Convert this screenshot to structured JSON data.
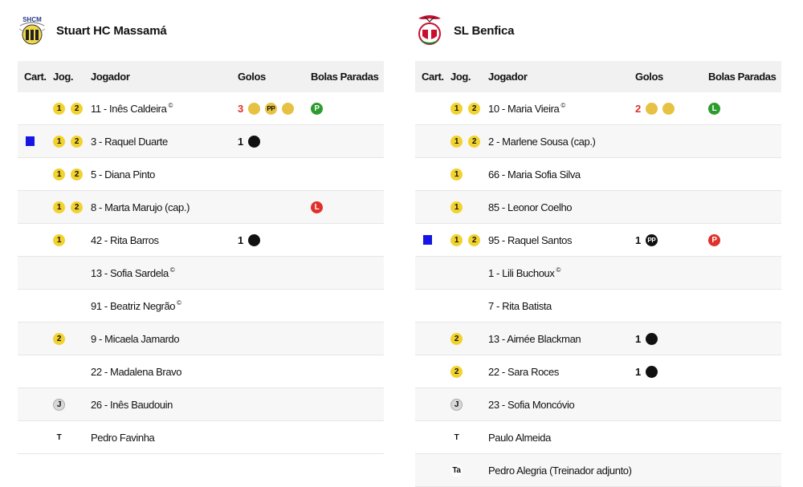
{
  "columns": {
    "cart": "Cart.",
    "jog": "Jog.",
    "player": "Jogador",
    "goals": "Golos",
    "set_pieces": "Bolas Paradas"
  },
  "home": {
    "name": "Stuart HC Massamá",
    "crest_text": "SHCM",
    "players": [
      {
        "name": "11 - Inês Caldeira",
        "sup": "©",
        "jog": [
          "1",
          "2"
        ],
        "card": null,
        "goals_count": "3",
        "goals_red": true,
        "goal_marks": [
          "ball-gold",
          "pp-gold",
          "ball-gold"
        ],
        "set": "P",
        "set_color": "green"
      },
      {
        "name": "3 - Raquel Duarte",
        "sup": "",
        "jog": [
          "1",
          "2"
        ],
        "card": "blue",
        "goals_count": "1",
        "goals_red": false,
        "goal_marks": [
          "ball-black"
        ],
        "set": "",
        "set_color": ""
      },
      {
        "name": "5 - Diana Pinto",
        "sup": "",
        "jog": [
          "1",
          "2"
        ],
        "card": null,
        "goals_count": "",
        "goals_red": false,
        "goal_marks": [],
        "set": "",
        "set_color": ""
      },
      {
        "name": "8 - Marta Marujo (cap.)",
        "sup": "",
        "jog": [
          "1",
          "2"
        ],
        "card": null,
        "goals_count": "",
        "goals_red": false,
        "goal_marks": [],
        "set": "L",
        "set_color": "red"
      },
      {
        "name": "42 - Rita Barros",
        "sup": "",
        "jog": [
          "1"
        ],
        "card": null,
        "goals_count": "1",
        "goals_red": false,
        "goal_marks": [
          "ball-black"
        ],
        "set": "",
        "set_color": ""
      },
      {
        "name": "13 - Sofia Sardela",
        "sup": "©",
        "jog": [],
        "card": null,
        "goals_count": "",
        "goals_red": false,
        "goal_marks": [],
        "set": "",
        "set_color": ""
      },
      {
        "name": "91 - Beatriz Negrão",
        "sup": "©",
        "jog": [],
        "card": null,
        "goals_count": "",
        "goals_red": false,
        "goal_marks": [],
        "set": "",
        "set_color": ""
      },
      {
        "name": "9 - Micaela Jamardo",
        "sup": "",
        "jog": [
          "2"
        ],
        "card": null,
        "goals_count": "",
        "goals_red": false,
        "goal_marks": [],
        "set": "",
        "set_color": ""
      },
      {
        "name": "22 - Madalena Bravo",
        "sup": "",
        "jog": [],
        "card": null,
        "goals_count": "",
        "goals_red": false,
        "goal_marks": [],
        "set": "",
        "set_color": ""
      },
      {
        "name": "26 - Inês Baudouin",
        "sup": "",
        "jog": [
          "J"
        ],
        "card": null,
        "goals_count": "",
        "goals_red": false,
        "goal_marks": [],
        "set": "",
        "set_color": ""
      },
      {
        "name": "Pedro Favinha",
        "sup": "",
        "jog": [
          "T"
        ],
        "card": null,
        "goals_count": "",
        "goals_red": false,
        "goal_marks": [],
        "set": "",
        "set_color": ""
      }
    ]
  },
  "away": {
    "name": "SL Benfica",
    "players": [
      {
        "name": "10 - Maria Vieira",
        "sup": "©",
        "jog": [
          "1",
          "2"
        ],
        "card": null,
        "goals_count": "2",
        "goals_red": true,
        "goal_marks": [
          "ball-gold",
          "ball-gold"
        ],
        "set": "L",
        "set_color": "green"
      },
      {
        "name": "2 - Marlene Sousa (cap.)",
        "sup": "",
        "jog": [
          "1",
          "2"
        ],
        "card": null,
        "goals_count": "",
        "goals_red": false,
        "goal_marks": [],
        "set": "",
        "set_color": ""
      },
      {
        "name": "66 - Maria Sofia Silva",
        "sup": "",
        "jog": [
          "1"
        ],
        "card": null,
        "goals_count": "",
        "goals_red": false,
        "goal_marks": [],
        "set": "",
        "set_color": ""
      },
      {
        "name": "85 - Leonor Coelho",
        "sup": "",
        "jog": [
          "1"
        ],
        "card": null,
        "goals_count": "",
        "goals_red": false,
        "goal_marks": [],
        "set": "",
        "set_color": ""
      },
      {
        "name": "95 - Raquel Santos",
        "sup": "",
        "jog": [
          "1",
          "2"
        ],
        "card": "blue",
        "goals_count": "1",
        "goals_red": false,
        "goal_marks": [
          "pp-black"
        ],
        "set": "P",
        "set_color": "red"
      },
      {
        "name": "1 - Lili Buchoux",
        "sup": "©",
        "jog": [],
        "card": null,
        "goals_count": "",
        "goals_red": false,
        "goal_marks": [],
        "set": "",
        "set_color": ""
      },
      {
        "name": "7 - Rita Batista",
        "sup": "",
        "jog": [],
        "card": null,
        "goals_count": "",
        "goals_red": false,
        "goal_marks": [],
        "set": "",
        "set_color": ""
      },
      {
        "name": "13 - Aimée Blackman",
        "sup": "",
        "jog": [
          "2"
        ],
        "card": null,
        "goals_count": "1",
        "goals_red": false,
        "goal_marks": [
          "ball-black"
        ],
        "set": "",
        "set_color": ""
      },
      {
        "name": "22 - Sara Roces",
        "sup": "",
        "jog": [
          "2"
        ],
        "card": null,
        "goals_count": "1",
        "goals_red": false,
        "goal_marks": [
          "ball-black"
        ],
        "set": "",
        "set_color": ""
      },
      {
        "name": "23 - Sofia Moncóvio",
        "sup": "",
        "jog": [
          "J"
        ],
        "card": null,
        "goals_count": "",
        "goals_red": false,
        "goal_marks": [],
        "set": "",
        "set_color": ""
      },
      {
        "name": "Paulo Almeida",
        "sup": "",
        "jog": [
          "T"
        ],
        "card": null,
        "goals_count": "",
        "goals_red": false,
        "goal_marks": [],
        "set": "",
        "set_color": ""
      },
      {
        "name": "Pedro Alegria (Treinador adjunto)",
        "sup": "",
        "jog": [
          "Ta"
        ],
        "card": null,
        "goals_count": "",
        "goals_red": false,
        "goal_marks": [],
        "set": "",
        "set_color": ""
      }
    ]
  },
  "colors": {
    "blue_card": "#1515e6",
    "gold": "#e6c142",
    "green": "#2e9b2e",
    "red": "#e0302a",
    "yellow_badge": "#f2d22e"
  },
  "labels": {
    "own_goal_pp": "PP"
  }
}
